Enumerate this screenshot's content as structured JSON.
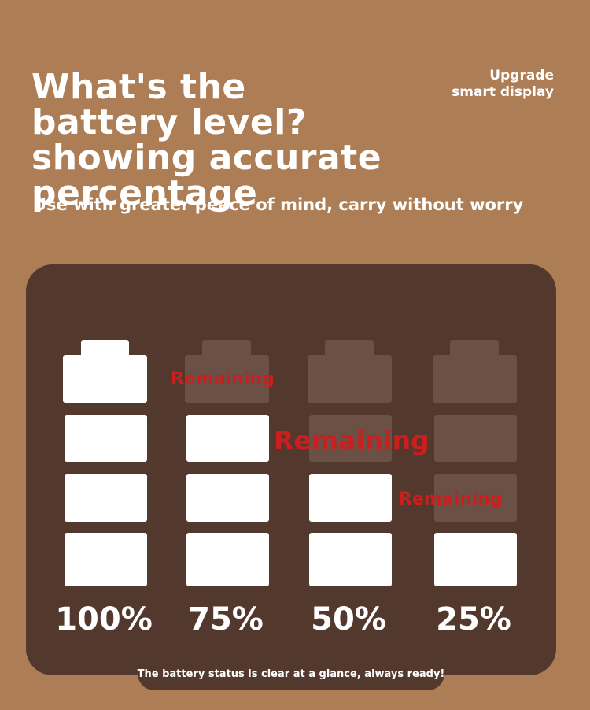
{
  "header": {
    "title": "What's the battery level? showing accurate percentage",
    "badge": "Upgrade smart display",
    "subtitle": "Use with greater peace of mind, carry without worry"
  },
  "batteries": [
    {
      "percent_label": "100%",
      "level": 1.0,
      "remaining_label": "Remaining"
    },
    {
      "percent_label": "75%",
      "level": 0.75,
      "remaining_label": "Remaining"
    },
    {
      "percent_label": "50%",
      "level": 0.5,
      "remaining_label": "Remaining"
    },
    {
      "percent_label": "25%",
      "level": 0.25,
      "remaining_label": ""
    }
  ],
  "footer": {
    "note": "The battery status is clear at a glance, always ready!"
  },
  "colors": {
    "background": "#ad7d55",
    "panel": "#53382d",
    "filled_cell": "#ffffff",
    "empty_cell": "#6b5046",
    "remaining_text": "#cc1e1e"
  }
}
